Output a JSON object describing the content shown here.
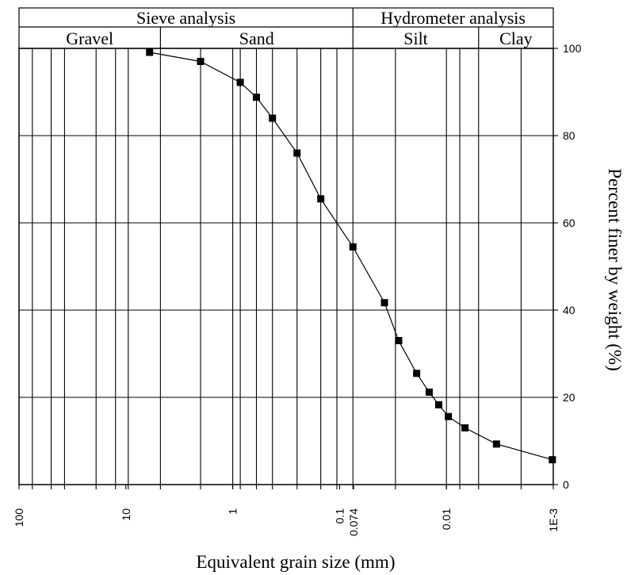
{
  "chart_data": {
    "type": "scatter",
    "xscale": "log",
    "xaxis_reversed": true,
    "xlim": [
      100,
      0.001
    ],
    "ylim": [
      0,
      100
    ],
    "xlabel": "Equivalent grain size (mm)",
    "ylabel": "Percent finer by weight (%)",
    "x_tick_labels": [
      "100",
      "10",
      "1",
      "0.1",
      "0.074",
      "0.01",
      "1E-3"
    ],
    "x_tick_values": [
      100,
      10,
      1,
      0.1,
      0.074,
      0.01,
      0.001
    ],
    "y_ticks": [
      0,
      20,
      40,
      60,
      80,
      100
    ],
    "grid": true,
    "vertical_gridlines": [
      75,
      50,
      37.5,
      19,
      12.5,
      9.5,
      4.75,
      2,
      1,
      0.85,
      0.6,
      0.425,
      0.25,
      0.15,
      0.106,
      0.075,
      0.03,
      0.01,
      0.0075,
      0.005,
      0.002
    ],
    "header": {
      "methods": [
        {
          "label": "Sieve analysis",
          "x_from": 100,
          "x_to": 0.075
        },
        {
          "label": "Hydrometer analysis",
          "x_from": 0.075,
          "x_to": 0.001
        }
      ],
      "soil_classes": [
        {
          "label": "Gravel",
          "x_from": 100,
          "x_to": 4.75
        },
        {
          "label": "Sand",
          "x_from": 4.75,
          "x_to": 0.075
        },
        {
          "label": "Silt",
          "x_from": 0.075,
          "x_to": 0.005
        },
        {
          "label": "Clay",
          "x_from": 0.005,
          "x_to": 0.001
        }
      ]
    },
    "series": [
      {
        "marker": "square",
        "line": "solid",
        "points": [
          {
            "x": 6.0,
            "y": 99.1
          },
          {
            "x": 2.0,
            "y": 97.0
          },
          {
            "x": 0.85,
            "y": 92.2
          },
          {
            "x": 0.6,
            "y": 88.8
          },
          {
            "x": 0.425,
            "y": 84.0
          },
          {
            "x": 0.25,
            "y": 76.0
          },
          {
            "x": 0.15,
            "y": 65.5
          },
          {
            "x": 0.075,
            "y": 54.5
          },
          {
            "x": 0.038,
            "y": 41.7
          },
          {
            "x": 0.028,
            "y": 33.0
          },
          {
            "x": 0.019,
            "y": 25.5
          },
          {
            "x": 0.0145,
            "y": 21.2
          },
          {
            "x": 0.0118,
            "y": 18.3
          },
          {
            "x": 0.0096,
            "y": 15.6
          },
          {
            "x": 0.0067,
            "y": 13.0
          },
          {
            "x": 0.0034,
            "y": 9.3
          },
          {
            "x": 0.00102,
            "y": 5.7
          }
        ]
      }
    ]
  }
}
